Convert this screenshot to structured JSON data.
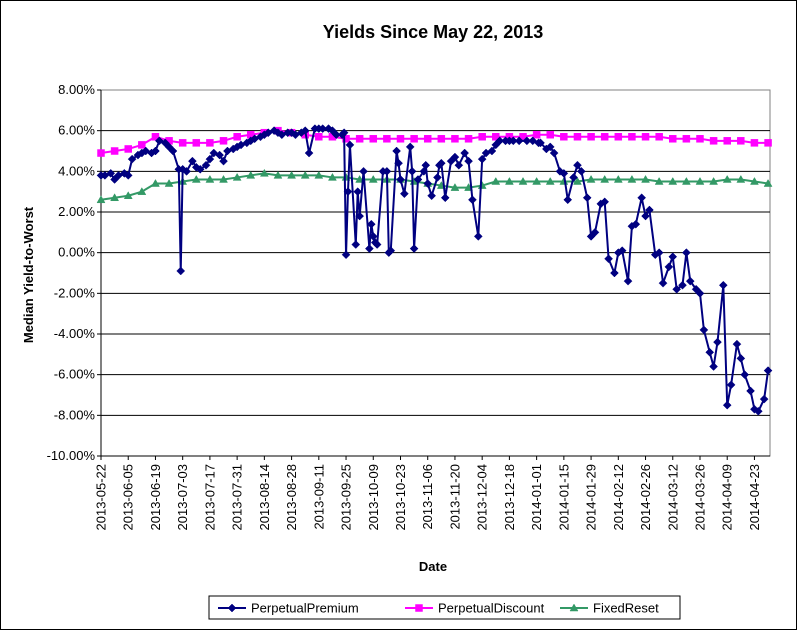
{
  "chart_data": {
    "type": "line",
    "title": "Yields Since May 22, 2013",
    "xlabel": "Date",
    "ylabel": "Median Yield-to-Worst",
    "ylim": [
      -0.1,
      0.08
    ],
    "y_ticks": [
      0.08,
      0.06,
      0.04,
      0.02,
      0.0,
      -0.02,
      -0.04,
      -0.06,
      -0.08,
      -0.1
    ],
    "y_tick_labels": [
      "8.00%",
      "6.00%",
      "4.00%",
      "2.00%",
      "0.00%",
      "-2.00%",
      "-4.00%",
      "-6.00%",
      "-8.00%",
      "-10.00%"
    ],
    "x_tick_labels": [
      "2013-05-22",
      "2013-06-05",
      "2013-06-19",
      "2013-07-03",
      "2013-07-17",
      "2013-07-31",
      "2013-08-14",
      "2013-08-28",
      "2013-09-11",
      "2013-09-25",
      "2013-10-09",
      "2013-10-23",
      "2013-11-06",
      "2013-11-20",
      "2013-12-04",
      "2013-12-18",
      "2014-01-01",
      "2014-01-15",
      "2014-01-29",
      "2014-02-12",
      "2014-02-26",
      "2014-03-12",
      "2014-03-26",
      "2014-04-09",
      "2014-04-23"
    ],
    "xlim": [
      "2013-05-22",
      "2014-05-01"
    ],
    "grid": "horizontal",
    "legend_position": "bottom",
    "series": [
      {
        "name": "PerpetualPremium",
        "color": "#000080",
        "marker": "diamond",
        "x": [
          "2013-05-22",
          "2013-05-24",
          "2013-05-27",
          "2013-05-29",
          "2013-05-31",
          "2013-06-03",
          "2013-06-05",
          "2013-06-07",
          "2013-06-10",
          "2013-06-12",
          "2013-06-14",
          "2013-06-17",
          "2013-06-19",
          "2013-06-21",
          "2013-06-24",
          "2013-06-26",
          "2013-06-28",
          "2013-07-01",
          "2013-07-02",
          "2013-07-03",
          "2013-07-05",
          "2013-07-08",
          "2013-07-10",
          "2013-07-12",
          "2013-07-15",
          "2013-07-17",
          "2013-07-19",
          "2013-07-22",
          "2013-07-24",
          "2013-07-26",
          "2013-07-29",
          "2013-07-31",
          "2013-08-02",
          "2013-08-05",
          "2013-08-07",
          "2013-08-09",
          "2013-08-12",
          "2013-08-14",
          "2013-08-16",
          "2013-08-19",
          "2013-08-21",
          "2013-08-23",
          "2013-08-26",
          "2013-08-28",
          "2013-08-30",
          "2013-09-02",
          "2013-09-04",
          "2013-09-06",
          "2013-09-09",
          "2013-09-11",
          "2013-09-13",
          "2013-09-16",
          "2013-09-18",
          "2013-09-20",
          "2013-09-23",
          "2013-09-24",
          "2013-09-25",
          "2013-09-26",
          "2013-09-27",
          "2013-09-30",
          "2013-10-01",
          "2013-10-02",
          "2013-10-04",
          "2013-10-07",
          "2013-10-08",
          "2013-10-09",
          "2013-10-10",
          "2013-10-11",
          "2013-10-14",
          "2013-10-16",
          "2013-10-17",
          "2013-10-18",
          "2013-10-21",
          "2013-10-22",
          "2013-10-23",
          "2013-10-25",
          "2013-10-28",
          "2013-10-29",
          "2013-10-30",
          "2013-11-01",
          "2013-11-04",
          "2013-11-05",
          "2013-11-06",
          "2013-11-08",
          "2013-11-11",
          "2013-11-12",
          "2013-11-13",
          "2013-11-15",
          "2013-11-18",
          "2013-11-20",
          "2013-11-22",
          "2013-11-25",
          "2013-11-27",
          "2013-11-29",
          "2013-12-02",
          "2013-12-04",
          "2013-12-06",
          "2013-12-09",
          "2013-12-11",
          "2013-12-13",
          "2013-12-16",
          "2013-12-18",
          "2013-12-20",
          "2013-12-23",
          "2013-12-27",
          "2013-12-30",
          "2014-01-02",
          "2014-01-03",
          "2014-01-06",
          "2014-01-08",
          "2014-01-10",
          "2014-01-13",
          "2014-01-15",
          "2014-01-17",
          "2014-01-20",
          "2014-01-22",
          "2014-01-24",
          "2014-01-27",
          "2014-01-29",
          "2014-01-31",
          "2014-02-03",
          "2014-02-05",
          "2014-02-07",
          "2014-02-10",
          "2014-02-12",
          "2014-02-14",
          "2014-02-17",
          "2014-02-19",
          "2014-02-21",
          "2014-02-24",
          "2014-02-26",
          "2014-02-28",
          "2014-03-03",
          "2014-03-05",
          "2014-03-07",
          "2014-03-10",
          "2014-03-12",
          "2014-03-14",
          "2014-03-17",
          "2014-03-19",
          "2014-03-21",
          "2014-03-24",
          "2014-03-26",
          "2014-03-28",
          "2014-03-31",
          "2014-04-02",
          "2014-04-04",
          "2014-04-07",
          "2014-04-09",
          "2014-04-11",
          "2014-04-14",
          "2014-04-16",
          "2014-04-18",
          "2014-04-21",
          "2014-04-23",
          "2014-04-25",
          "2014-04-28",
          "2014-04-30"
        ],
        "values": [
          0.038,
          0.038,
          0.039,
          0.036,
          0.038,
          0.039,
          0.038,
          0.046,
          0.048,
          0.049,
          0.05,
          0.049,
          0.05,
          0.055,
          0.054,
          0.052,
          0.05,
          0.041,
          -0.009,
          0.041,
          0.04,
          0.045,
          0.042,
          0.041,
          0.043,
          0.046,
          0.049,
          0.048,
          0.045,
          0.05,
          0.051,
          0.052,
          0.053,
          0.054,
          0.055,
          0.056,
          0.057,
          0.058,
          0.059,
          0.06,
          0.059,
          0.058,
          0.059,
          0.059,
          0.058,
          0.059,
          0.06,
          0.049,
          0.061,
          0.061,
          0.061,
          0.061,
          0.06,
          0.058,
          0.058,
          0.059,
          -0.001,
          0.03,
          0.053,
          0.004,
          0.03,
          0.018,
          0.04,
          0.002,
          0.014,
          0.008,
          0.005,
          0.004,
          0.04,
          0.04,
          0.0,
          0.001,
          0.05,
          0.044,
          0.036,
          0.029,
          0.052,
          0.04,
          0.002,
          0.036,
          0.04,
          0.043,
          0.034,
          0.028,
          0.037,
          0.043,
          0.044,
          0.027,
          0.045,
          0.047,
          0.043,
          0.049,
          0.045,
          0.026,
          0.008,
          0.046,
          0.049,
          0.05,
          0.053,
          0.055,
          0.055,
          0.055,
          0.055,
          0.055,
          0.055,
          0.055,
          0.054,
          0.054,
          0.051,
          0.052,
          0.049,
          0.04,
          0.039,
          0.026,
          0.037,
          0.043,
          0.04,
          0.027,
          0.008,
          0.01,
          0.024,
          0.025,
          -0.003,
          -0.01,
          0.0,
          0.001,
          -0.014,
          0.013,
          0.014,
          0.027,
          0.018,
          0.021,
          -0.001,
          0.0,
          -0.015,
          -0.007,
          -0.002,
          -0.018,
          -0.016,
          0.0,
          -0.014,
          -0.018,
          -0.02,
          -0.038,
          -0.049,
          -0.056,
          -0.044,
          -0.016,
          -0.075,
          -0.065,
          -0.045,
          -0.052,
          -0.06,
          -0.068,
          -0.077,
          -0.078,
          -0.072,
          -0.058
        ]
      },
      {
        "name": "PerpetualDiscount",
        "color": "#FF00FF",
        "marker": "square",
        "x": [
          "2013-05-22",
          "2013-05-29",
          "2013-06-05",
          "2013-06-12",
          "2013-06-19",
          "2013-06-26",
          "2013-07-03",
          "2013-07-10",
          "2013-07-17",
          "2013-07-24",
          "2013-07-31",
          "2013-08-07",
          "2013-08-14",
          "2013-08-21",
          "2013-08-28",
          "2013-09-04",
          "2013-09-11",
          "2013-09-18",
          "2013-09-25",
          "2013-10-02",
          "2013-10-09",
          "2013-10-16",
          "2013-10-23",
          "2013-10-30",
          "2013-11-06",
          "2013-11-13",
          "2013-11-20",
          "2013-11-27",
          "2013-12-04",
          "2013-12-11",
          "2013-12-18",
          "2013-12-25",
          "2014-01-01",
          "2014-01-08",
          "2014-01-15",
          "2014-01-22",
          "2014-01-29",
          "2014-02-05",
          "2014-02-12",
          "2014-02-19",
          "2014-02-26",
          "2014-03-05",
          "2014-03-12",
          "2014-03-19",
          "2014-03-26",
          "2014-04-02",
          "2014-04-09",
          "2014-04-16",
          "2014-04-23",
          "2014-04-30"
        ],
        "values": [
          0.049,
          0.05,
          0.051,
          0.053,
          0.057,
          0.055,
          0.054,
          0.054,
          0.054,
          0.055,
          0.057,
          0.058,
          0.059,
          0.06,
          0.059,
          0.058,
          0.057,
          0.057,
          0.056,
          0.056,
          0.056,
          0.056,
          0.056,
          0.056,
          0.056,
          0.056,
          0.056,
          0.056,
          0.057,
          0.057,
          0.057,
          0.057,
          0.058,
          0.058,
          0.057,
          0.057,
          0.057,
          0.057,
          0.057,
          0.057,
          0.057,
          0.057,
          0.056,
          0.056,
          0.056,
          0.055,
          0.055,
          0.055,
          0.054,
          0.054
        ]
      },
      {
        "name": "FixedReset",
        "color": "#339966",
        "marker": "triangle",
        "x": [
          "2013-05-22",
          "2013-05-29",
          "2013-06-05",
          "2013-06-12",
          "2013-06-19",
          "2013-06-26",
          "2013-07-03",
          "2013-07-10",
          "2013-07-17",
          "2013-07-24",
          "2013-07-31",
          "2013-08-07",
          "2013-08-14",
          "2013-08-21",
          "2013-08-28",
          "2013-09-04",
          "2013-09-11",
          "2013-09-18",
          "2013-09-25",
          "2013-10-02",
          "2013-10-09",
          "2013-10-16",
          "2013-10-23",
          "2013-10-30",
          "2013-11-06",
          "2013-11-13",
          "2013-11-20",
          "2013-11-27",
          "2013-12-04",
          "2013-12-11",
          "2013-12-18",
          "2013-12-25",
          "2014-01-01",
          "2014-01-08",
          "2014-01-15",
          "2014-01-22",
          "2014-01-29",
          "2014-02-05",
          "2014-02-12",
          "2014-02-19",
          "2014-02-26",
          "2014-03-05",
          "2014-03-12",
          "2014-03-19",
          "2014-03-26",
          "2014-04-02",
          "2014-04-09",
          "2014-04-16",
          "2014-04-23",
          "2014-04-30"
        ],
        "values": [
          0.026,
          0.027,
          0.028,
          0.03,
          0.034,
          0.034,
          0.035,
          0.036,
          0.036,
          0.036,
          0.037,
          0.038,
          0.039,
          0.038,
          0.038,
          0.038,
          0.038,
          0.037,
          0.037,
          0.036,
          0.036,
          0.036,
          0.036,
          0.035,
          0.034,
          0.033,
          0.032,
          0.032,
          0.033,
          0.035,
          0.035,
          0.035,
          0.035,
          0.035,
          0.035,
          0.035,
          0.036,
          0.036,
          0.036,
          0.036,
          0.036,
          0.035,
          0.035,
          0.035,
          0.035,
          0.035,
          0.036,
          0.036,
          0.035,
          0.034
        ]
      }
    ]
  }
}
